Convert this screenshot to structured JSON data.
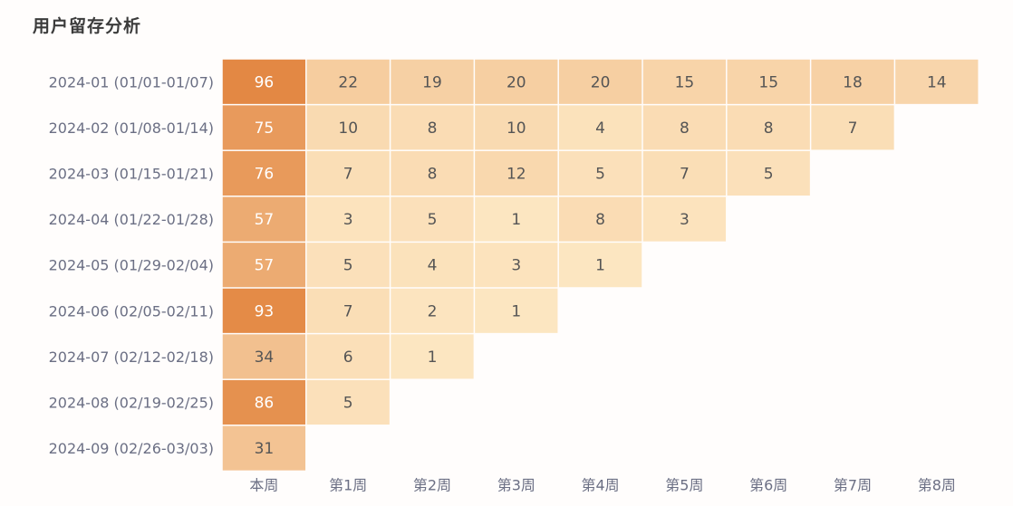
{
  "page": {
    "title": "用户留存分析"
  },
  "chart_data": {
    "type": "heatmap",
    "title": "用户留存分析",
    "rows": [
      "2024-01 (01/01-01/07)",
      "2024-02 (01/08-01/14)",
      "2024-03 (01/15-01/21)",
      "2024-04 (01/22-01/28)",
      "2024-05 (01/29-02/04)",
      "2024-06 (02/05-02/11)",
      "2024-07 (02/12-02/18)",
      "2024-08 (02/19-02/25)",
      "2024-09 (02/26-03/03)"
    ],
    "columns": [
      "本周",
      "第1周",
      "第2周",
      "第3周",
      "第4周",
      "第5周",
      "第6周",
      "第7周",
      "第8周"
    ],
    "values": [
      [
        96,
        22,
        19,
        20,
        20,
        15,
        15,
        18,
        14
      ],
      [
        75,
        10,
        8,
        10,
        4,
        8,
        8,
        7
      ],
      [
        76,
        7,
        8,
        12,
        5,
        7,
        5
      ],
      [
        57,
        3,
        5,
        1,
        8,
        3
      ],
      [
        57,
        5,
        4,
        3,
        1
      ],
      [
        93,
        7,
        2,
        1
      ],
      [
        34,
        6,
        1
      ],
      [
        86,
        5
      ],
      [
        31
      ]
    ],
    "color_scale": {
      "low": "#fde8c4",
      "high": "#e2853f",
      "vmin": 0,
      "vmax": 100
    }
  }
}
